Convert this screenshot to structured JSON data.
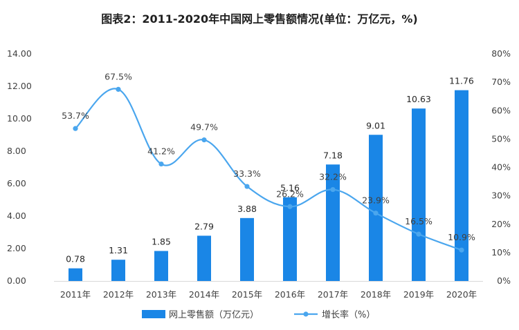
{
  "chart_data": {
    "type": "bar",
    "title": "图表2：2011-2020年中国网上零售额情况(单位：万亿元，%)",
    "categories": [
      "2011年",
      "2012年",
      "2013年",
      "2014年",
      "2015年",
      "2016年",
      "2017年",
      "2018年",
      "2019年",
      "2020年"
    ],
    "series": [
      {
        "name": "网上零售额（万亿元）",
        "type": "bar",
        "axis": "left",
        "values": [
          0.78,
          1.31,
          1.85,
          2.79,
          3.88,
          5.16,
          7.18,
          9.01,
          10.63,
          11.76
        ],
        "labels": [
          "0.78",
          "1.31",
          "1.85",
          "2.79",
          "3.88",
          "5.16",
          "7.18",
          "9.01",
          "10.63",
          "11.76"
        ],
        "color": "#1a86e6"
      },
      {
        "name": "增长率（%）",
        "type": "line",
        "axis": "right",
        "values": [
          53.7,
          67.5,
          41.2,
          49.7,
          33.3,
          26.2,
          32.2,
          23.9,
          16.5,
          10.9
        ],
        "labels": [
          "53.7%",
          "67.5%",
          "41.2%",
          "49.7%",
          "33.3%",
          "26.2%",
          "32.2%",
          "23.9%",
          "16.5%",
          "10.9%"
        ],
        "color": "#4aa6ee"
      }
    ],
    "y_left": {
      "range": [
        0,
        14
      ],
      "ticks": [
        0,
        2,
        4,
        6,
        8,
        10,
        12,
        14
      ],
      "tick_labels": [
        "0.00",
        "2.00",
        "4.00",
        "6.00",
        "8.00",
        "10.00",
        "12.00",
        "14.00"
      ]
    },
    "y_right": {
      "range": [
        0,
        80
      ],
      "ticks": [
        0,
        10,
        20,
        30,
        40,
        50,
        60,
        70,
        80
      ],
      "tick_labels": [
        "0%",
        "10%",
        "20%",
        "30%",
        "40%",
        "50%",
        "60%",
        "70%",
        "80%"
      ]
    },
    "grid": false,
    "legend_position": "bottom"
  }
}
